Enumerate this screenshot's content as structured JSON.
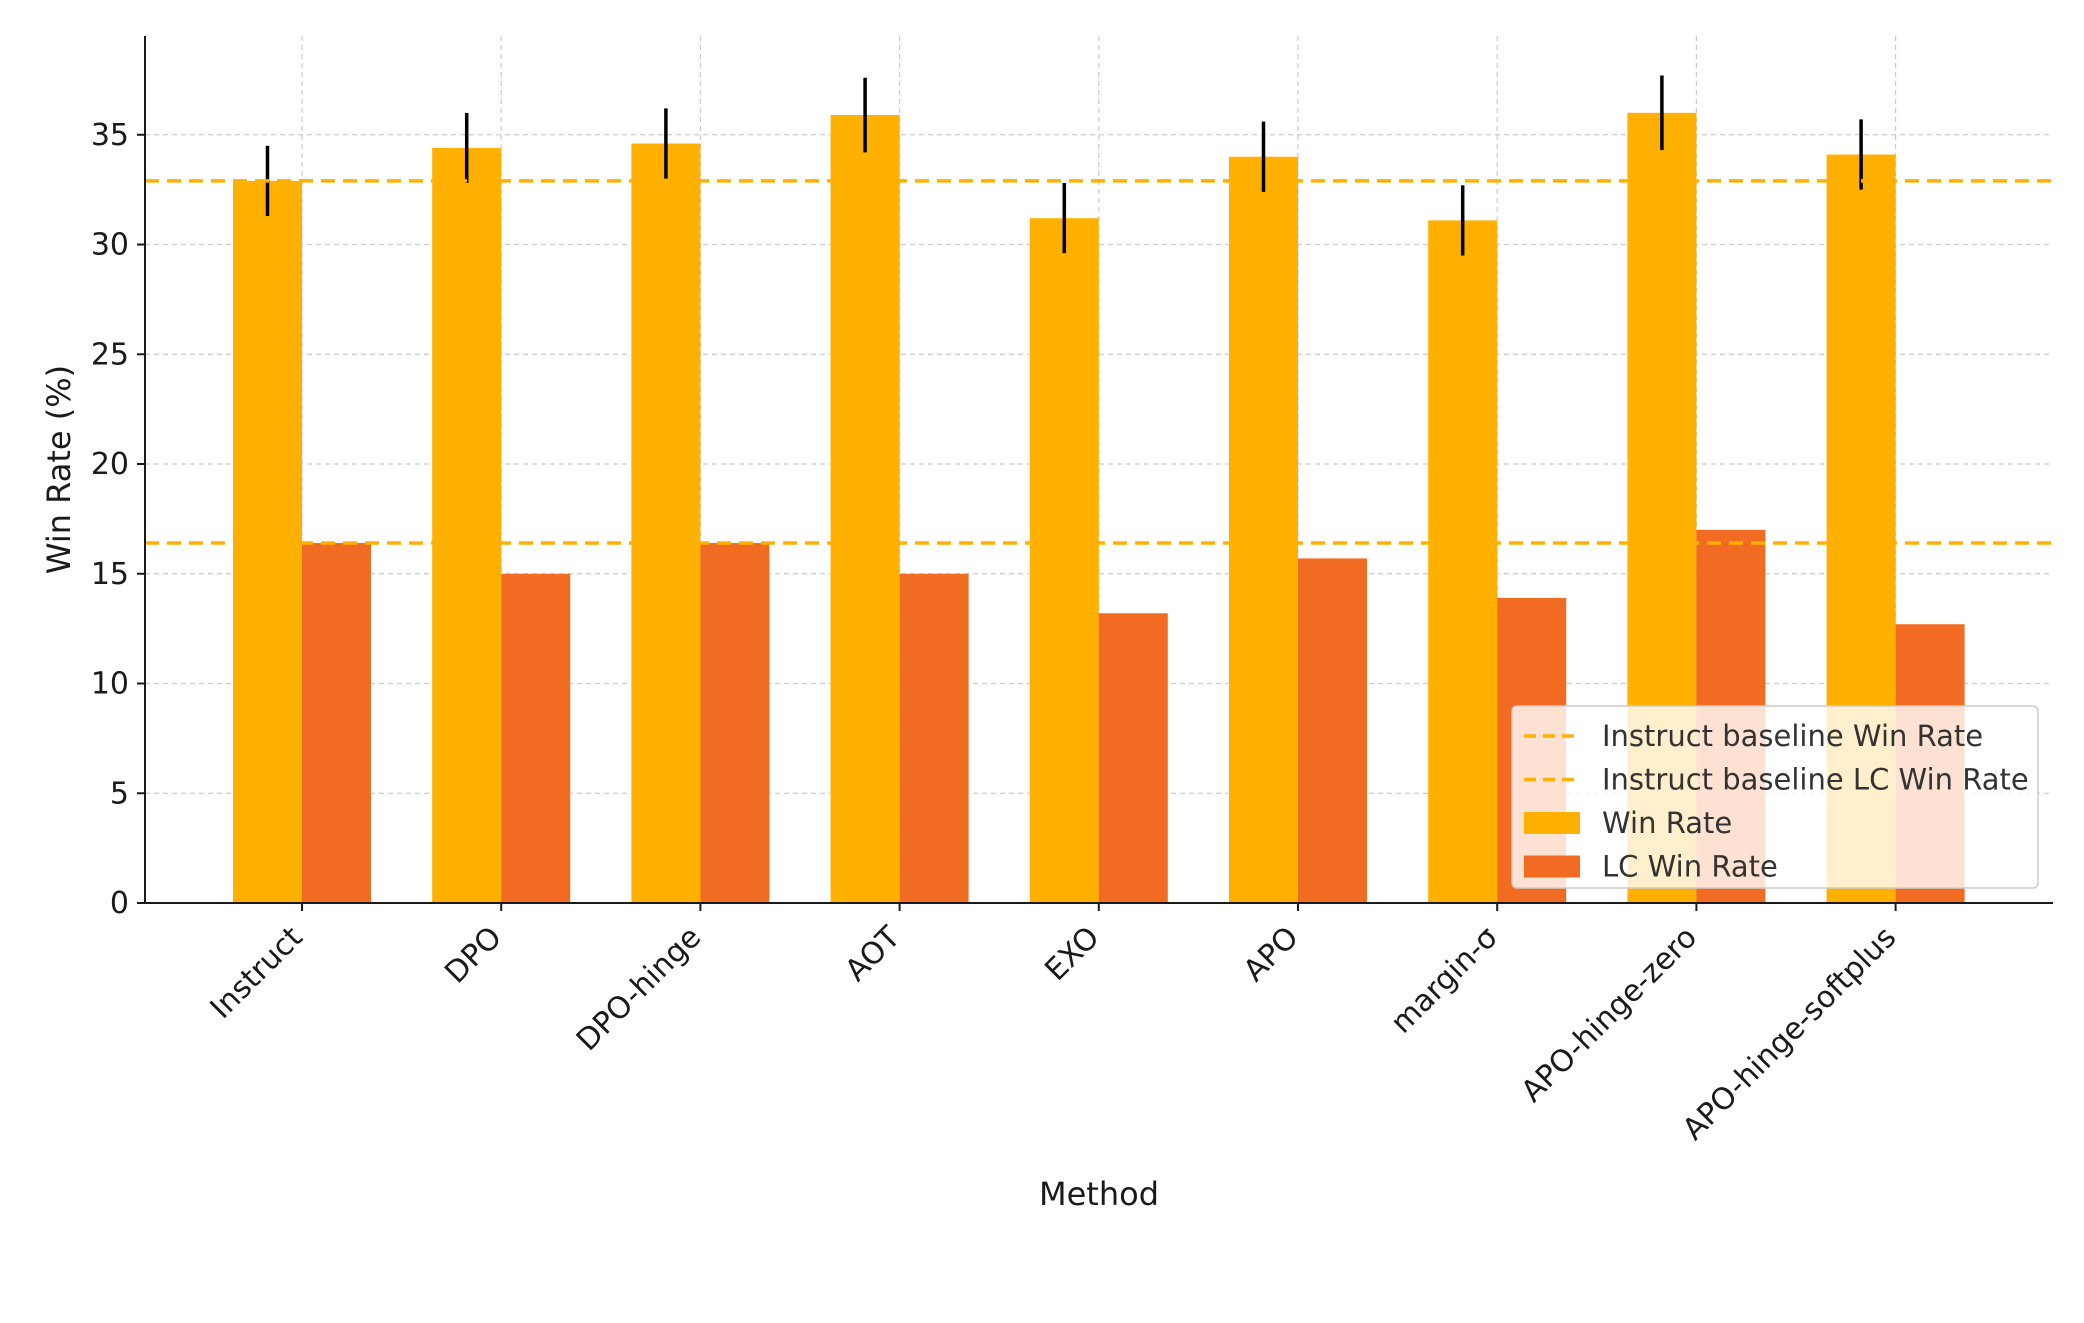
{
  "chart_data": {
    "type": "bar",
    "title": "",
    "xlabel": "Method",
    "ylabel": "Win Rate (%)",
    "ylim": [
      0,
      39.5
    ],
    "yticks": [
      0,
      5,
      10,
      15,
      20,
      25,
      30,
      35
    ],
    "grid": true,
    "legend_position": "lower-right",
    "categories": [
      "Instruct",
      "DPO",
      "DPO-hinge",
      "AOT",
      "EXO",
      "APO",
      "margin-σ",
      "APO-hinge-zero",
      "APO-hinge-softplus"
    ],
    "series": [
      {
        "name": "Win Rate",
        "color": "#FFB000",
        "values": [
          32.9,
          34.4,
          34.6,
          35.9,
          31.2,
          34.0,
          31.1,
          36.0,
          34.1
        ],
        "error": [
          1.6,
          1.6,
          1.6,
          1.7,
          1.6,
          1.6,
          1.6,
          1.7,
          1.6
        ]
      },
      {
        "name": "LC Win Rate",
        "color": "#F26B22",
        "values": [
          16.4,
          15.0,
          16.4,
          15.0,
          13.2,
          15.7,
          13.9,
          17.0,
          12.7
        ]
      }
    ],
    "baselines": [
      {
        "name": "Instruct baseline Win Rate",
        "value": 32.9,
        "color": "#FFB000",
        "style": "dashed"
      },
      {
        "name": "Instruct baseline LC Win Rate",
        "value": 16.4,
        "color": "#FFB000",
        "style": "dashed"
      }
    ]
  }
}
